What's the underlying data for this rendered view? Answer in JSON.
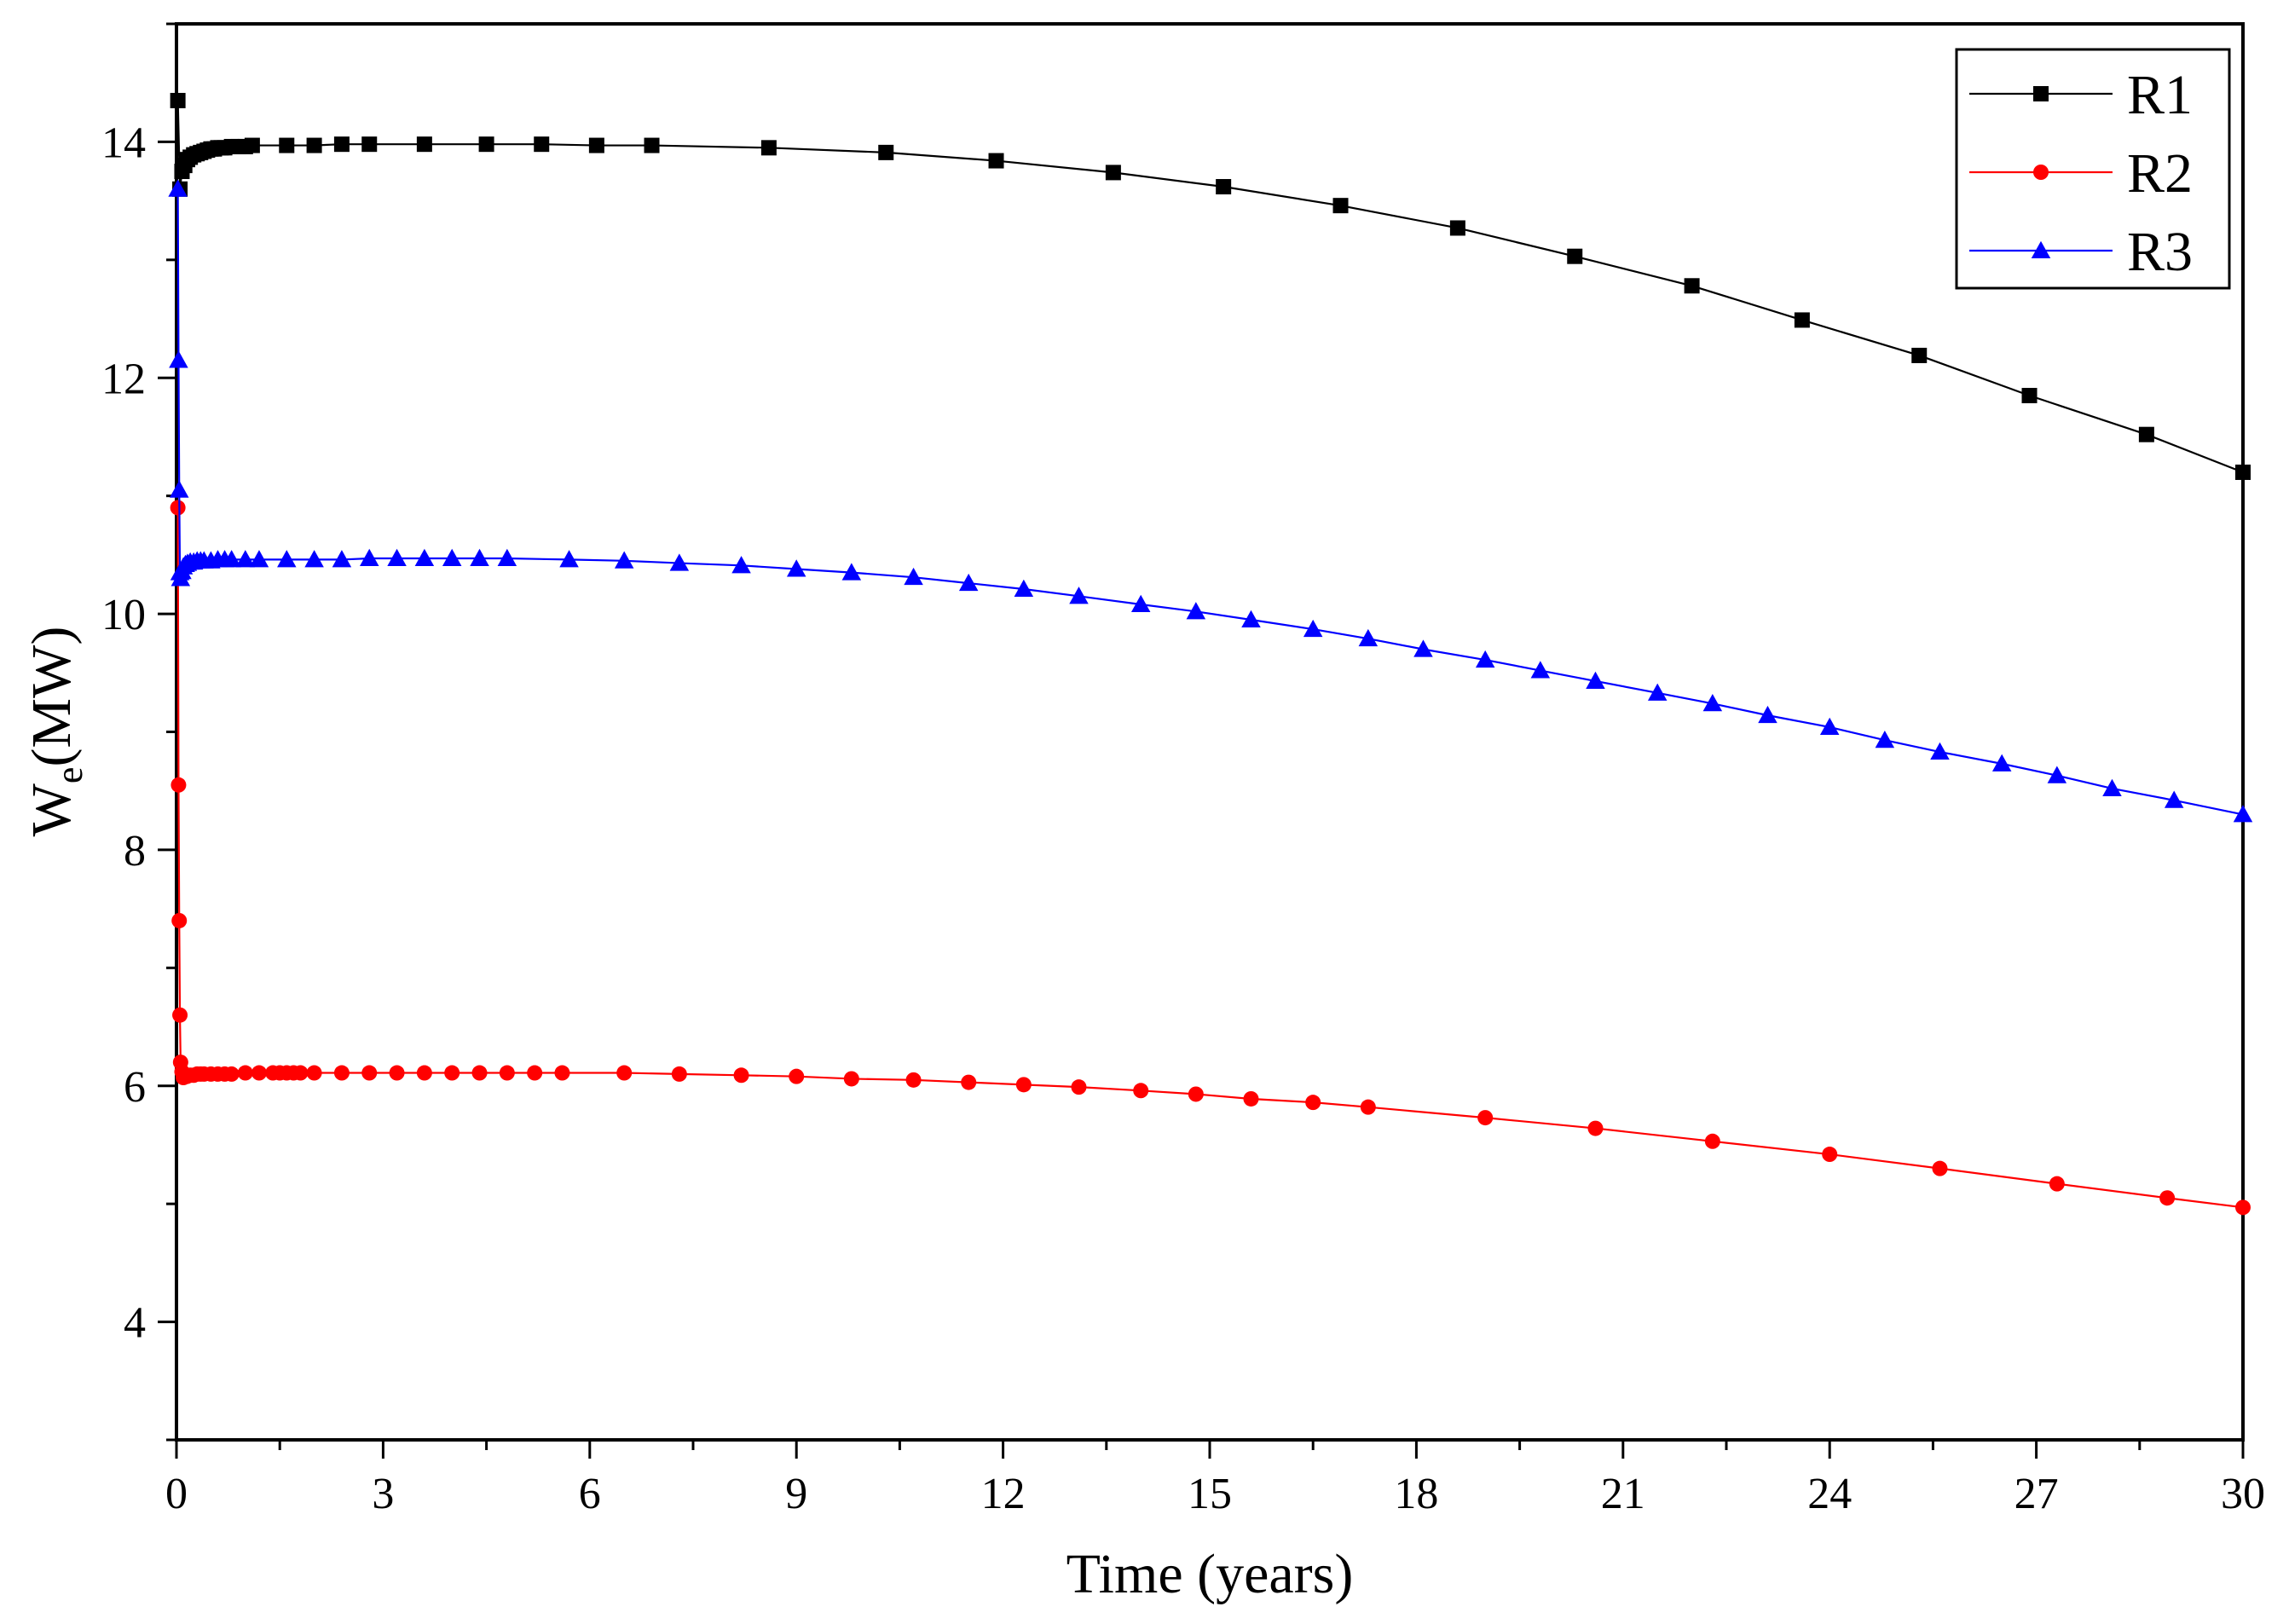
{
  "chart_data": {
    "type": "line",
    "title": "",
    "xlabel": "Time (years)",
    "ylabel": {
      "main": "W",
      "subscript": "e",
      "unit": "(MW)"
    },
    "xlim": [
      0,
      30
    ],
    "ylim": [
      3,
      15
    ],
    "xticks": [
      0,
      3,
      6,
      9,
      12,
      15,
      18,
      21,
      24,
      27,
      30
    ],
    "yticks": [
      4,
      6,
      8,
      10,
      12,
      14
    ],
    "legend_position": "top-right",
    "series": [
      {
        "name": "R1",
        "color": "#000000",
        "marker": "square",
        "x": [
          0.02,
          0.05,
          0.08,
          0.12,
          0.16,
          0.2,
          0.25,
          0.3,
          0.35,
          0.4,
          0.45,
          0.5,
          0.55,
          0.6,
          0.65,
          0.7,
          0.8,
          0.9,
          1.0,
          1.1,
          1.6,
          2.0,
          2.4,
          2.8,
          3.6,
          4.5,
          5.3,
          6.1,
          6.9,
          8.6,
          10.3,
          11.9,
          13.6,
          15.2,
          16.9,
          18.6,
          20.3,
          22.0,
          23.6,
          25.3,
          26.9,
          28.6,
          30.0
        ],
        "y": [
          14.35,
          13.6,
          13.75,
          13.8,
          13.85,
          13.87,
          13.89,
          13.9,
          13.91,
          13.92,
          13.93,
          13.94,
          13.94,
          13.95,
          13.95,
          13.95,
          13.96,
          13.96,
          13.96,
          13.97,
          13.97,
          13.97,
          13.98,
          13.98,
          13.98,
          13.98,
          13.98,
          13.97,
          13.97,
          13.95,
          13.91,
          13.84,
          13.74,
          13.62,
          13.46,
          13.27,
          13.03,
          12.78,
          12.49,
          12.19,
          11.85,
          11.52,
          11.2
        ]
      },
      {
        "name": "R2",
        "color": "#ff0000",
        "marker": "circle",
        "x": [
          0.02,
          0.03,
          0.04,
          0.05,
          0.06,
          0.08,
          0.1,
          0.15,
          0.2,
          0.25,
          0.3,
          0.35,
          0.4,
          0.5,
          0.6,
          0.7,
          0.8,
          1.0,
          1.2,
          1.4,
          1.5,
          1.6,
          1.7,
          1.8,
          2.0,
          2.4,
          2.8,
          3.2,
          3.6,
          4.0,
          4.4,
          4.8,
          5.2,
          5.6,
          6.5,
          7.3,
          8.2,
          9.0,
          9.8,
          10.7,
          11.5,
          12.3,
          13.1,
          14.0,
          14.8,
          15.6,
          16.5,
          17.3,
          19.0,
          20.6,
          22.3,
          24.0,
          25.6,
          27.3,
          28.9,
          30.0
        ],
        "y": [
          10.9,
          8.55,
          7.4,
          6.6,
          6.2,
          6.12,
          6.07,
          6.08,
          6.09,
          6.09,
          6.1,
          6.1,
          6.1,
          6.1,
          6.1,
          6.1,
          6.1,
          6.11,
          6.11,
          6.11,
          6.11,
          6.11,
          6.11,
          6.11,
          6.11,
          6.11,
          6.11,
          6.11,
          6.11,
          6.11,
          6.11,
          6.11,
          6.11,
          6.11,
          6.11,
          6.1,
          6.09,
          6.08,
          6.06,
          6.05,
          6.03,
          6.01,
          5.99,
          5.96,
          5.93,
          5.89,
          5.86,
          5.82,
          5.73,
          5.64,
          5.53,
          5.42,
          5.3,
          5.17,
          5.05,
          4.97
        ]
      },
      {
        "name": "R3",
        "color": "#0000ff",
        "marker": "triangle",
        "x": [
          0.02,
          0.03,
          0.04,
          0.05,
          0.06,
          0.08,
          0.1,
          0.13,
          0.16,
          0.2,
          0.25,
          0.3,
          0.35,
          0.4,
          0.5,
          0.6,
          0.7,
          0.8,
          1.0,
          1.2,
          1.6,
          2.0,
          2.4,
          2.8,
          3.2,
          3.6,
          4.0,
          4.4,
          4.8,
          5.7,
          6.5,
          7.3,
          8.2,
          9.0,
          9.8,
          10.7,
          11.5,
          12.3,
          13.1,
          14.0,
          14.8,
          15.6,
          16.5,
          17.3,
          18.1,
          19.0,
          19.8,
          20.6,
          21.5,
          22.3,
          23.1,
          24.0,
          24.8,
          25.6,
          26.5,
          27.3,
          28.1,
          29.0,
          30.0
        ],
        "y": [
          13.6,
          12.15,
          11.05,
          10.35,
          10.3,
          10.36,
          10.4,
          10.42,
          10.43,
          10.44,
          10.44,
          10.45,
          10.45,
          10.45,
          10.45,
          10.46,
          10.46,
          10.46,
          10.46,
          10.46,
          10.46,
          10.46,
          10.46,
          10.47,
          10.47,
          10.47,
          10.47,
          10.47,
          10.47,
          10.46,
          10.45,
          10.43,
          10.41,
          10.38,
          10.35,
          10.31,
          10.26,
          10.21,
          10.15,
          10.08,
          10.02,
          9.95,
          9.87,
          9.79,
          9.7,
          9.61,
          9.52,
          9.43,
          9.33,
          9.24,
          9.14,
          9.04,
          8.93,
          8.83,
          8.73,
          8.63,
          8.52,
          8.42,
          8.3
        ]
      }
    ]
  }
}
